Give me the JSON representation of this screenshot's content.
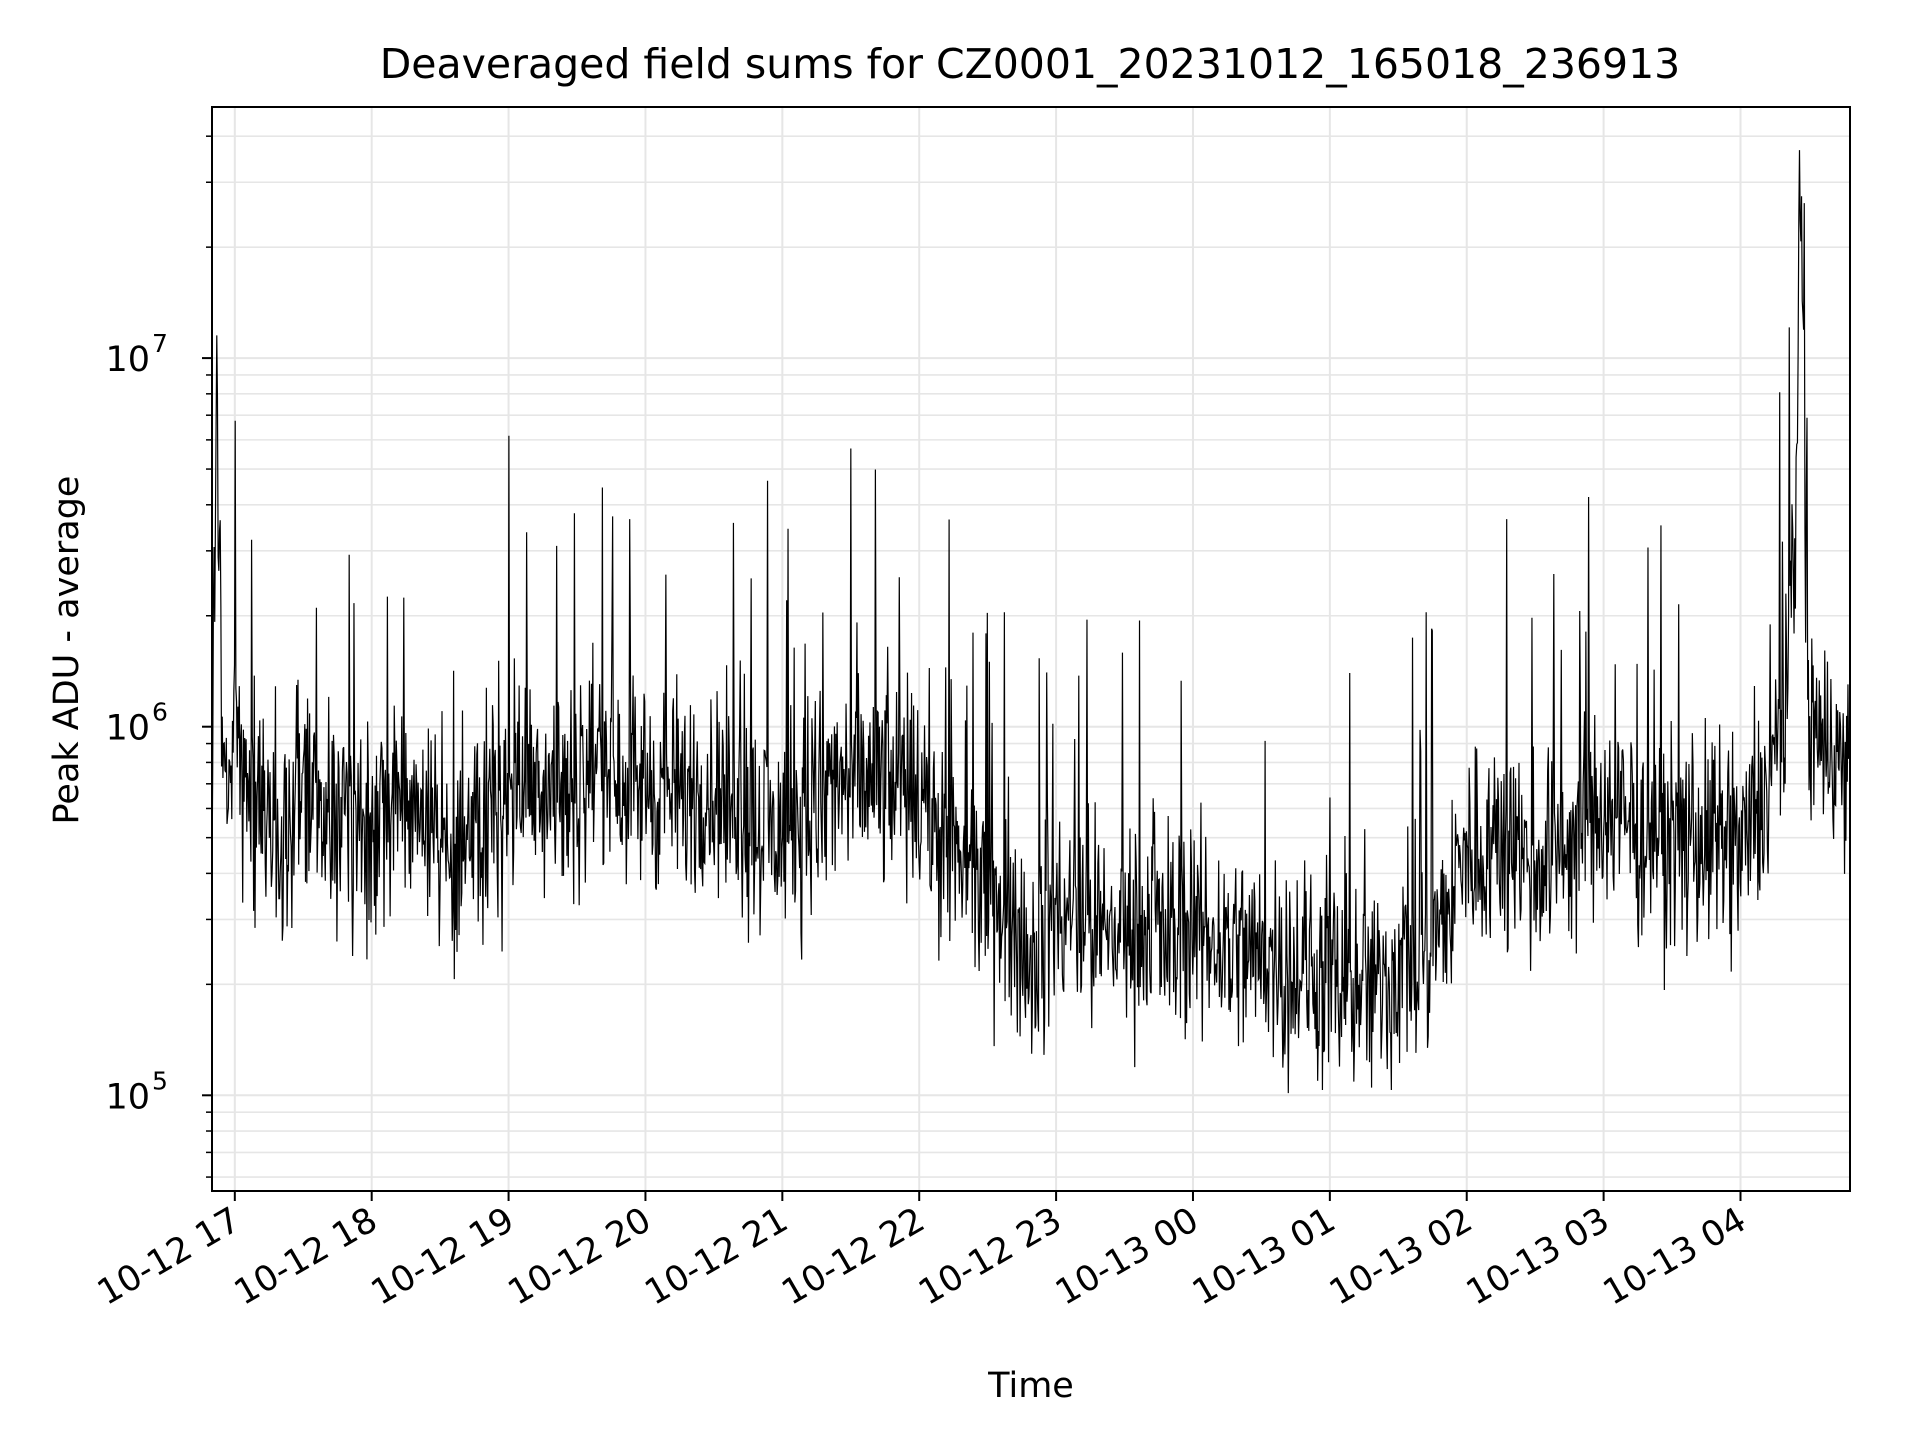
{
  "chart_data": {
    "type": "line",
    "title": "Deaveraged field sums for CZ0001_20231012_165018_236913",
    "xlabel": "Time",
    "ylabel": "Peak ADU - average",
    "x_range": [
      "2023-10-12 16:50",
      "2023-10-13 04:48"
    ],
    "yscale": "log",
    "ylim": [
      55000,
      48000000
    ],
    "grid": true,
    "grid_minor": true,
    "line_color": "#000000",
    "grid_color": "#e6e6e6",
    "x_ticks": [
      {
        "value": "2023-10-12 17:00",
        "label": "10-12 17"
      },
      {
        "value": "2023-10-12 18:00",
        "label": "10-12 18"
      },
      {
        "value": "2023-10-12 19:00",
        "label": "10-12 19"
      },
      {
        "value": "2023-10-12 20:00",
        "label": "10-12 20"
      },
      {
        "value": "2023-10-12 21:00",
        "label": "10-12 21"
      },
      {
        "value": "2023-10-12 22:00",
        "label": "10-12 22"
      },
      {
        "value": "2023-10-12 23:00",
        "label": "10-12 23"
      },
      {
        "value": "2023-10-13 00:00",
        "label": "10-13 00"
      },
      {
        "value": "2023-10-13 01:00",
        "label": "10-13 01"
      },
      {
        "value": "2023-10-13 02:00",
        "label": "10-13 02"
      },
      {
        "value": "2023-10-13 03:00",
        "label": "10-13 03"
      },
      {
        "value": "2023-10-13 04:00",
        "label": "10-13 04"
      }
    ],
    "y_ticks": [
      {
        "value": 100000,
        "base": "10",
        "exp": "5"
      },
      {
        "value": 1000000,
        "base": "10",
        "exp": "6"
      },
      {
        "value": 10000000,
        "base": "10",
        "exp": "7"
      }
    ],
    "series": [
      {
        "x": [
          "2023-10-12 16:50",
          "2023-10-12 16:52",
          "2023-10-12 16:55",
          "2023-10-12 17:00",
          "2023-10-12 17:10",
          "2023-10-12 17:15",
          "2023-10-12 17:30",
          "2023-10-12 17:50",
          "2023-10-12 18:00",
          "2023-10-12 18:10",
          "2023-10-12 18:25",
          "2023-10-12 18:35",
          "2023-10-12 18:50",
          "2023-10-12 19:00",
          "2023-10-12 19:15",
          "2023-10-12 19:30",
          "2023-10-12 19:40",
          "2023-10-12 19:50",
          "2023-10-12 20:00",
          "2023-10-12 20:15",
          "2023-10-12 20:27",
          "2023-10-12 20:40",
          "2023-10-12 20:50",
          "2023-10-12 21:00",
          "2023-10-12 21:15",
          "2023-10-12 21:30",
          "2023-10-12 21:45",
          "2023-10-12 22:00",
          "2023-10-12 22:20",
          "2023-10-12 22:30",
          "2023-10-12 22:50",
          "2023-10-12 23:00",
          "2023-10-12 23:20",
          "2023-10-12 23:40",
          "2023-10-13 00:00",
          "2023-10-13 00:20",
          "2023-10-13 00:40",
          "2023-10-13 01:00",
          "2023-10-13 01:15",
          "2023-10-13 01:30",
          "2023-10-13 01:45",
          "2023-10-13 02:00",
          "2023-10-13 02:15",
          "2023-10-13 02:30",
          "2023-10-13 02:45",
          "2023-10-13 03:00",
          "2023-10-13 03:15",
          "2023-10-13 03:30",
          "2023-10-13 03:45",
          "2023-10-13 04:00",
          "2023-10-13 04:10",
          "2023-10-13 04:20",
          "2023-10-13 04:24",
          "2023-10-13 04:26",
          "2023-10-13 04:30",
          "2023-10-13 04:40",
          "2023-10-13 04:48"
        ],
        "y": [
          600000,
          8300000,
          700000,
          900000,
          650000,
          500000,
          600000,
          500000,
          450000,
          700000,
          600000,
          400000,
          500000,
          700000,
          750000,
          700000,
          900000,
          750000,
          700000,
          650000,
          700000,
          600000,
          550000,
          500000,
          650000,
          700000,
          700000,
          650000,
          400000,
          350000,
          250000,
          300000,
          280000,
          280000,
          280000,
          250000,
          230000,
          200000,
          180000,
          220000,
          250000,
          450000,
          500000,
          450000,
          450000,
          600000,
          500000,
          450000,
          500000,
          450000,
          600000,
          1200000,
          3500000,
          35000000,
          1000000,
          900000,
          700000
        ]
      }
    ]
  }
}
